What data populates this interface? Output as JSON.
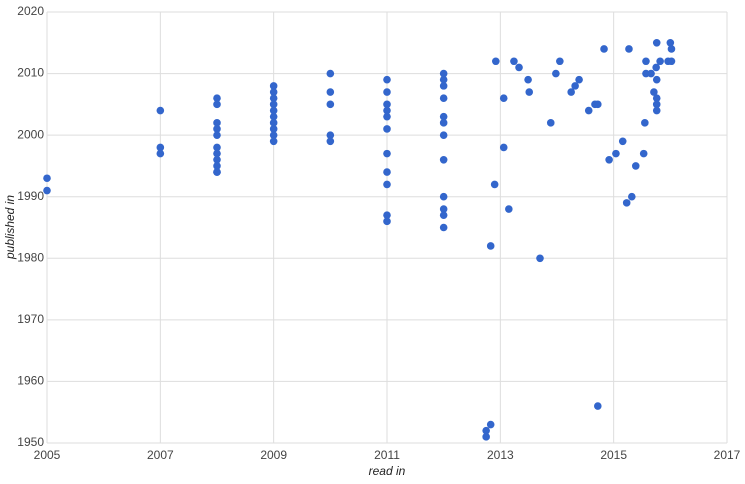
{
  "chart_data": {
    "type": "scatter",
    "x_label": "read in",
    "y_label": "published in",
    "x": [
      2005,
      2005,
      2007,
      2007,
      2007,
      2008,
      2008,
      2008,
      2008,
      2008,
      2008,
      2008,
      2008,
      2008,
      2008,
      2008,
      2009,
      2009,
      2009,
      2009,
      2009,
      2009,
      2009,
      2009,
      2009,
      2009,
      2010,
      2010,
      2010,
      2010,
      2010,
      2011,
      2011,
      2011,
      2011,
      2011,
      2011,
      2011,
      2011,
      2011,
      2011,
      2011,
      2012,
      2012,
      2012,
      2012,
      2012,
      2012,
      2012,
      2012,
      2012,
      2012,
      2012,
      2012,
      2012.75,
      2012.75,
      2012.83,
      2012.83,
      2012.9,
      2012.92,
      2013.06,
      2013.06,
      2013.15,
      2013.24,
      2013.33,
      2013.49,
      2013.51,
      2013.7,
      2013.89,
      2013.98,
      2014.05,
      2014.25,
      2014.32,
      2014.39,
      2014.56,
      2014.67,
      2014.72,
      2014.72,
      2014.83,
      2014.92,
      2015.04,
      2015.16,
      2015.23,
      2015.27,
      2015.32,
      2015.39,
      2015.53,
      2015.55,
      2015.57,
      2015.57,
      2015.66,
      2015.71,
      2015.75,
      2015.76,
      2015.76,
      2015.76,
      2015.76,
      2015.76,
      2015.82,
      2015.96,
      2016,
      2016.02,
      2016.02
    ],
    "values": [
      1993,
      1991,
      2004,
      1998,
      1997,
      2006,
      2005,
      2002,
      2001,
      2000,
      1998,
      1997,
      1996,
      1995,
      1994,
      1994,
      2008,
      2007,
      2006,
      2005,
      2004,
      2003,
      2002,
      2001,
      2000,
      1999,
      2010,
      2007,
      2005,
      2000,
      1999,
      2009,
      2007,
      2005,
      2004,
      2003,
      2001,
      1997,
      1994,
      1992,
      1987,
      1986,
      2010,
      2009,
      2008,
      2006,
      2003,
      2002,
      2000,
      1996,
      1990,
      1988,
      1987,
      1985,
      1952,
      1951,
      1953,
      1982,
      1992,
      2012,
      2006,
      1998,
      1988,
      2012,
      2011,
      2009,
      2007,
      1980,
      2002,
      2010,
      2012,
      2007,
      2008,
      2009,
      2004,
      2005,
      2005,
      1956,
      2014,
      1996,
      1997,
      1999,
      1989,
      2014,
      1990,
      1995,
      1997,
      2002,
      2012,
      2010,
      2010,
      2007,
      2011,
      2015,
      2009,
      2006,
      2005,
      2004,
      2012,
      2012,
      2015,
      2014,
      2012
    ],
    "color": "#3366cc",
    "xlim": [
      2005,
      2017
    ],
    "xticks": [
      2005,
      2007,
      2009,
      2011,
      2013,
      2015,
      2017
    ],
    "ylim": [
      1950,
      2020
    ],
    "yticks": [
      1950,
      1960,
      1970,
      1980,
      1990,
      2000,
      2010,
      2020
    ],
    "grid": true
  }
}
